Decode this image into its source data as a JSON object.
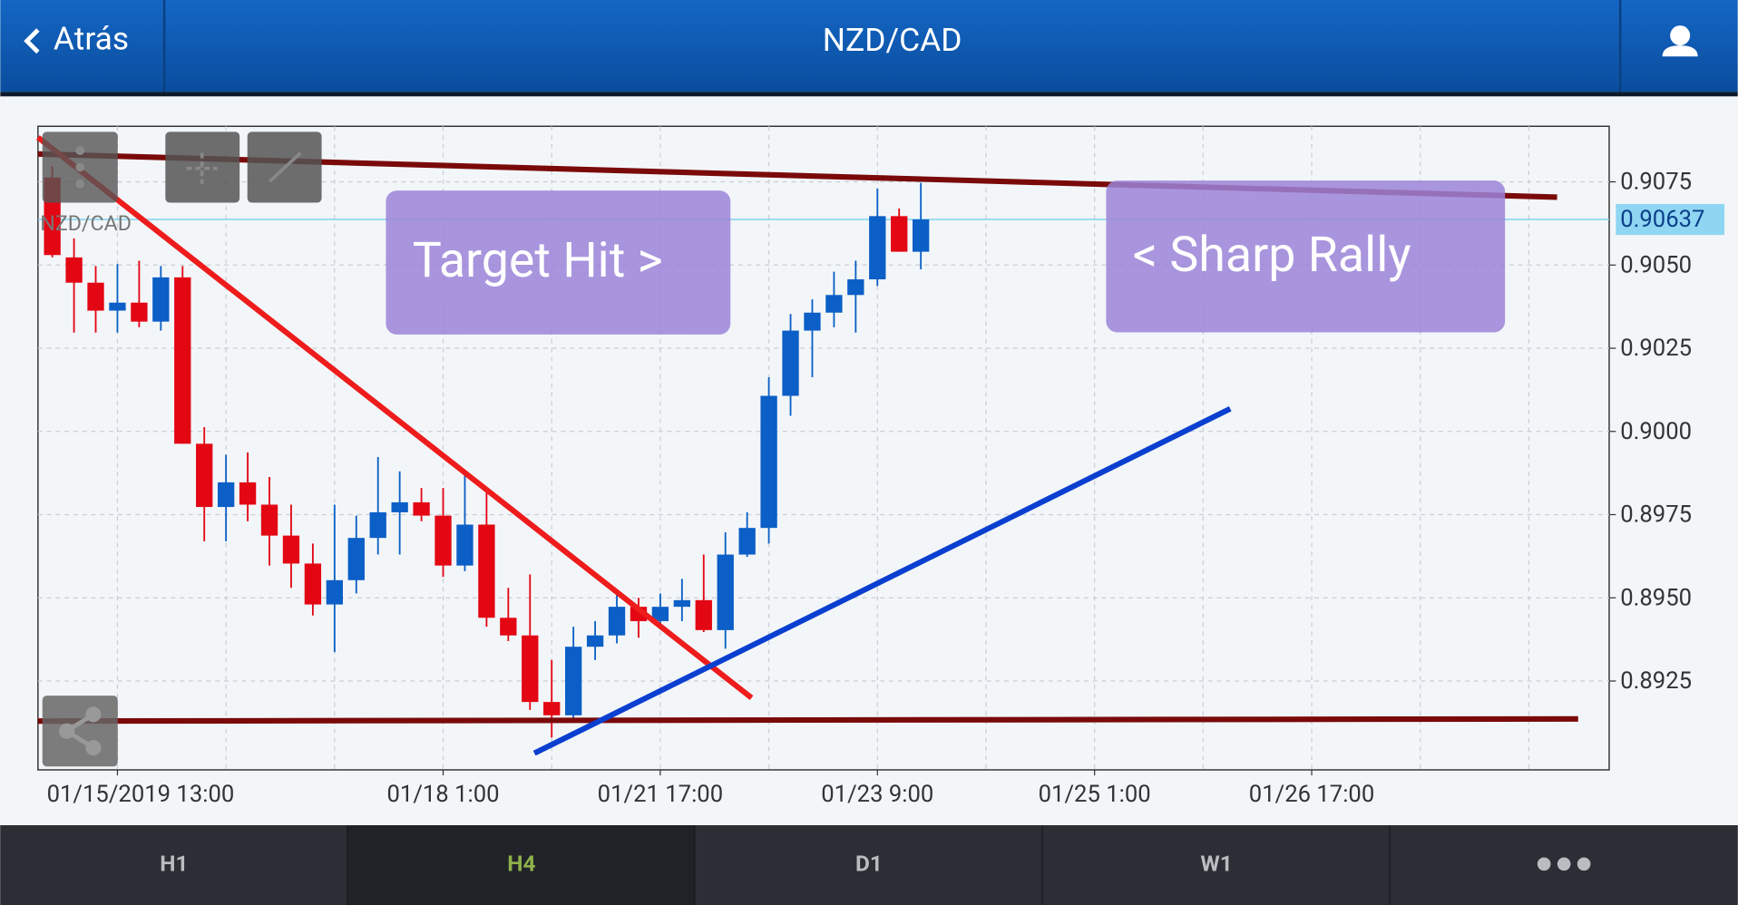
{
  "header": {
    "back": "Atrás",
    "title": "NZD/CAD"
  },
  "tabs": [
    "H1",
    "H4",
    "D1",
    "W1"
  ],
  "active_tab": 1,
  "chart_data": {
    "type": "candlestick",
    "symbol_label": "NZD/CAD",
    "annotations": [
      "Target Hit >",
      "< Sharp Rally"
    ],
    "open": [
      0.90763,
      0.90523,
      0.90447,
      0.90363,
      0.90387,
      0.9033,
      0.90463,
      0.89963,
      0.89773,
      0.89847,
      0.8978,
      0.89687,
      0.89603,
      0.8948,
      0.89553,
      0.8968,
      0.89757,
      0.89787,
      0.89747,
      0.89597,
      0.8972,
      0.8944,
      0.89387,
      0.89187,
      0.89147,
      0.89353,
      0.89387,
      0.89473,
      0.8943,
      0.89473,
      0.89493,
      0.89403,
      0.8963,
      0.8971,
      0.90107,
      0.90303,
      0.90357,
      0.9041,
      0.90457,
      0.90647,
      0.9054
    ],
    "high": [
      0.90797,
      0.9058,
      0.90497,
      0.90503,
      0.90513,
      0.90497,
      0.90497,
      0.90013,
      0.8993,
      0.89937,
      0.89863,
      0.8978,
      0.89663,
      0.8978,
      0.89747,
      0.89923,
      0.8988,
      0.8983,
      0.8983,
      0.8988,
      0.8983,
      0.8953,
      0.8957,
      0.89313,
      0.89413,
      0.8943,
      0.89513,
      0.895,
      0.89513,
      0.89557,
      0.8963,
      0.89697,
      0.89757,
      0.90163,
      0.90353,
      0.90397,
      0.9048,
      0.90513,
      0.9073,
      0.9067,
      0.90747
    ],
    "low": [
      0.90523,
      0.90297,
      0.90297,
      0.90297,
      0.90313,
      0.90303,
      0.89963,
      0.8967,
      0.8967,
      0.8973,
      0.89597,
      0.8953,
      0.89447,
      0.89337,
      0.89513,
      0.8963,
      0.8963,
      0.8973,
      0.89563,
      0.8958,
      0.89413,
      0.8937,
      0.89163,
      0.8908,
      0.8913,
      0.89313,
      0.89363,
      0.8938,
      0.89413,
      0.8943,
      0.89397,
      0.89347,
      0.89623,
      0.89663,
      0.90047,
      0.90163,
      0.90313,
      0.90297,
      0.90437,
      0.9054,
      0.90487
    ],
    "close": [
      0.9053,
      0.90447,
      0.90363,
      0.90387,
      0.9033,
      0.90463,
      0.89963,
      0.89773,
      0.89847,
      0.8978,
      0.89687,
      0.89603,
      0.8948,
      0.89553,
      0.8968,
      0.89757,
      0.89787,
      0.89747,
      0.89597,
      0.8972,
      0.8944,
      0.89387,
      0.89187,
      0.89147,
      0.89353,
      0.89387,
      0.89473,
      0.8943,
      0.89473,
      0.89493,
      0.89403,
      0.8963,
      0.8971,
      0.90107,
      0.90303,
      0.90357,
      0.9041,
      0.90457,
      0.90647,
      0.9054,
      0.90637
    ],
    "up_color": "#0b5fc6",
    "down_color": "#e30613",
    "last_price": 0.90637,
    "ylim": [
      0.88983,
      0.90917
    ],
    "yticks": [
      0.9075,
      {
        "value": 0.905,
        "label": "0.9050"
      },
      0.9025,
      {
        "value": 0.9,
        "label": "0.9000"
      },
      0.8975,
      {
        "value": 0.895,
        "label": "0.8950"
      },
      0.8925
    ],
    "xlim": [
      -0.66,
      71.7
    ],
    "xticks": [
      {
        "value": 3,
        "label": "01/15/2019 13:00"
      },
      {
        "value": 18,
        "label": "01/18 1:00"
      },
      {
        "value": 28,
        "label": "01/21 17:00"
      },
      {
        "value": 38,
        "label": "01/23 9:00"
      },
      {
        "value": 48,
        "label": "01/25 1:00"
      },
      {
        "value": 58,
        "label": "01/26 17:00"
      }
    ],
    "xgrid": [
      3,
      8,
      13,
      18,
      23,
      28,
      33,
      38,
      43,
      48,
      53,
      58,
      63,
      68
    ],
    "grid": true
  }
}
